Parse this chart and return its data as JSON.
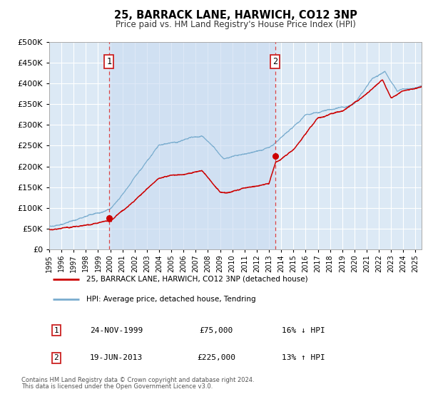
{
  "title": "25, BARRACK LANE, HARWICH, CO12 3NP",
  "subtitle": "Price paid vs. HM Land Registry's House Price Index (HPI)",
  "ylim": [
    0,
    500000
  ],
  "yticks": [
    0,
    50000,
    100000,
    150000,
    200000,
    250000,
    300000,
    350000,
    400000,
    450000,
    500000
  ],
  "xlim_start": 1995.0,
  "xlim_end": 2025.5,
  "bg_color": "#dce9f5",
  "fig_bg_color": "#ffffff",
  "shaded_region": [
    1999.9,
    2013.5
  ],
  "sale1": {
    "date_num": 1999.9,
    "price": 75000,
    "label": "1"
  },
  "sale2": {
    "date_num": 2013.5,
    "price": 225000,
    "label": "2"
  },
  "red_line_color": "#cc0000",
  "blue_line_color": "#7aadcf",
  "marker_color": "#cc0000",
  "vline_color": "#dd4444",
  "legend_entries": [
    "25, BARRACK LANE, HARWICH, CO12 3NP (detached house)",
    "HPI: Average price, detached house, Tendring"
  ],
  "annotation1": {
    "label": "1",
    "date": "24-NOV-1999",
    "price": "£75,000",
    "hpi": "16% ↓ HPI"
  },
  "annotation2": {
    "label": "2",
    "date": "19-JUN-2013",
    "price": "£225,000",
    "hpi": "13% ↑ HPI"
  },
  "footnote1": "Contains HM Land Registry data © Crown copyright and database right 2024.",
  "footnote2": "This data is licensed under the Open Government Licence v3.0."
}
